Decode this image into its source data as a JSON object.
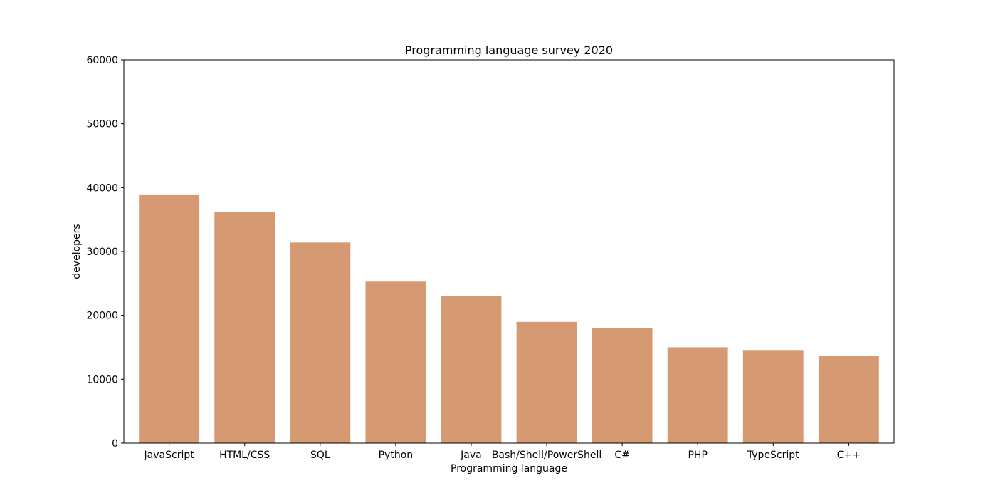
{
  "chart_data": {
    "type": "bar",
    "title": "Programming language survey 2020",
    "xlabel": "Programming language",
    "ylabel": "developers",
    "categories": [
      "JavaScript",
      "HTML/CSS",
      "SQL",
      "Python",
      "Java",
      "Bash/Shell/PowerShell",
      "C#",
      "PHP",
      "TypeScript",
      "C++"
    ],
    "values": [
      38822,
      36181,
      31413,
      25287,
      23074,
      18980,
      18041,
      15007,
      14578,
      13707
    ],
    "ylim": [
      0,
      60000
    ],
    "yticks": [
      "0",
      "10000",
      "20000",
      "30000",
      "40000",
      "50000",
      "60000"
    ],
    "grid": false,
    "bar_color": "#d59a72"
  }
}
